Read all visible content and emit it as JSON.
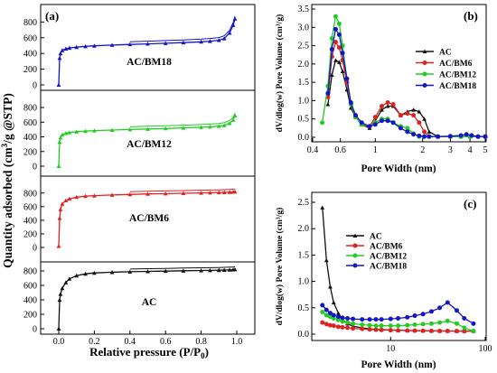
{
  "figure": {
    "left_ylabel_parts": [
      "Quantity adsorbed (cm",
      "3",
      "/g @STP)"
    ],
    "left_xlabel_parts": [
      "Relative pressure (P/P",
      "0",
      ")"
    ]
  },
  "chart_data": [
    {
      "panel": "(a)",
      "type": "line",
      "subplots": [
        {
          "label": "AC/BM18",
          "color": "#1515c8",
          "ylim": [
            0,
            850
          ],
          "yticks": [
            0,
            200,
            400,
            600,
            800
          ],
          "x": [
            0.0,
            0.005,
            0.01,
            0.02,
            0.04,
            0.06,
            0.1,
            0.15,
            0.2,
            0.3,
            0.4,
            0.5,
            0.6,
            0.7,
            0.8,
            0.85,
            0.9,
            0.93,
            0.96,
            0.98,
            0.99
          ],
          "values": [
            0,
            340,
            400,
            440,
            460,
            470,
            480,
            490,
            497,
            507,
            515,
            522,
            530,
            538,
            548,
            556,
            568,
            590,
            660,
            760,
            840
          ]
        },
        {
          "label": "AC/BM12",
          "color": "#22cc22",
          "ylim": [
            0,
            850
          ],
          "yticks": [
            0,
            200,
            400,
            600,
            800
          ],
          "x": [
            0.0,
            0.005,
            0.01,
            0.02,
            0.04,
            0.06,
            0.1,
            0.15,
            0.2,
            0.3,
            0.4,
            0.5,
            0.6,
            0.7,
            0.8,
            0.85,
            0.9,
            0.93,
            0.96,
            0.98,
            0.99
          ],
          "values": [
            0,
            330,
            390,
            430,
            450,
            460,
            470,
            478,
            485,
            493,
            500,
            507,
            514,
            522,
            531,
            537,
            546,
            557,
            585,
            630,
            690
          ]
        },
        {
          "label": "AC/BM6",
          "color": "#dd2222",
          "ylim": [
            0,
            850
          ],
          "yticks": [
            0,
            200,
            400,
            600,
            800
          ],
          "x": [
            0.0,
            0.005,
            0.01,
            0.02,
            0.04,
            0.06,
            0.1,
            0.15,
            0.2,
            0.3,
            0.4,
            0.5,
            0.6,
            0.7,
            0.8,
            0.85,
            0.9,
            0.93,
            0.96,
            0.98,
            0.99
          ],
          "values": [
            20,
            430,
            560,
            640,
            690,
            715,
            740,
            755,
            762,
            772,
            780,
            787,
            792,
            797,
            802,
            805,
            808,
            810,
            813,
            817,
            820
          ]
        },
        {
          "label": "AC",
          "color": "#111111",
          "ylim": [
            0,
            850
          ],
          "yticks": [
            0,
            200,
            400,
            600,
            800
          ],
          "x": [
            0.0,
            0.005,
            0.01,
            0.02,
            0.04,
            0.06,
            0.1,
            0.15,
            0.2,
            0.3,
            0.4,
            0.5,
            0.6,
            0.7,
            0.8,
            0.85,
            0.9,
            0.93,
            0.96,
            0.98,
            0.99
          ],
          "values": [
            0,
            400,
            480,
            560,
            640,
            690,
            735,
            760,
            772,
            782,
            789,
            794,
            798,
            802,
            806,
            808,
            810,
            812,
            815,
            818,
            820
          ]
        }
      ],
      "xticks": [
        "0.0",
        "0.2",
        "0.4",
        "0.6",
        "0.8",
        "1.0"
      ],
      "xlim": [
        0,
        1
      ]
    },
    {
      "panel": "(b)",
      "type": "line",
      "xscale": "log",
      "xlabel": "Pore Width (nm)",
      "ylabel": "dV/dlog(w) Pore Volume (cm³/g)",
      "xlim": [
        0.4,
        5
      ],
      "ylim": [
        0,
        3.5
      ],
      "xticks": [
        0.4,
        0.6,
        1,
        2,
        3,
        4,
        5
      ],
      "xtick_labels": [
        "0.4",
        "0.6",
        "1",
        "2",
        "3",
        "4",
        "5"
      ],
      "yticks": [
        0,
        0.5,
        1.0,
        1.5,
        2.0,
        2.5,
        3.0,
        3.5
      ],
      "ytick_labels": [
        "0.0",
        "0.5",
        "1.0",
        "1.5",
        "2.0",
        "2.5",
        "3.0",
        "3.5"
      ],
      "legend": "upper right",
      "series": [
        {
          "name": "AC",
          "color": "#111111",
          "x": [
            0.5,
            0.53,
            0.56,
            0.59,
            0.62,
            0.66,
            0.7,
            0.75,
            0.82,
            0.92,
            1.0,
            1.1,
            1.2,
            1.3,
            1.45,
            1.6,
            1.75,
            1.9,
            2.05,
            2.2,
            2.5,
            3.0,
            3.5,
            4.0,
            4.5,
            5.0
          ],
          "values": [
            0.9,
            1.7,
            2.1,
            2.05,
            1.8,
            1.3,
            0.8,
            0.55,
            0.35,
            0.25,
            0.45,
            0.75,
            0.85,
            0.85,
            0.6,
            0.7,
            0.75,
            0.7,
            0.5,
            0.15,
            0.02,
            0.02,
            0.02,
            0.02,
            0.02,
            0.02
          ]
        },
        {
          "name": "AC/BM6",
          "color": "#dd2222",
          "x": [
            0.5,
            0.53,
            0.56,
            0.59,
            0.62,
            0.66,
            0.7,
            0.75,
            0.82,
            0.92,
            1.0,
            1.1,
            1.2,
            1.3,
            1.45,
            1.6,
            1.75,
            1.9,
            2.05,
            2.2,
            2.5,
            3.0,
            3.5,
            4.0,
            4.5,
            5.0
          ],
          "values": [
            1.1,
            2.2,
            2.6,
            2.45,
            2.1,
            1.5,
            0.9,
            0.55,
            0.35,
            0.3,
            0.55,
            0.85,
            0.95,
            0.9,
            0.6,
            0.65,
            0.6,
            0.4,
            0.15,
            0.02,
            0.02,
            0.02,
            0.02,
            0.02,
            0.02,
            0.02
          ]
        },
        {
          "name": "AC/BM12",
          "color": "#22cc22",
          "x": [
            0.46,
            0.5,
            0.53,
            0.56,
            0.59,
            0.62,
            0.66,
            0.7,
            0.75,
            0.82,
            0.92,
            1.0,
            1.1,
            1.2,
            1.3,
            1.45,
            1.6,
            1.75,
            1.9,
            2.05,
            2.2,
            2.5,
            3.0,
            3.5,
            4.0,
            4.5,
            5.0
          ],
          "values": [
            0.4,
            1.4,
            2.7,
            3.3,
            3.1,
            2.5,
            1.6,
            0.9,
            0.55,
            0.35,
            0.3,
            0.4,
            0.5,
            0.5,
            0.4,
            0.3,
            0.25,
            0.1,
            0.02,
            0.02,
            0.02,
            0.02,
            0.02,
            0.02,
            0.02,
            0.02,
            0.02
          ]
        },
        {
          "name": "AC/BM18",
          "color": "#1515c8",
          "x": [
            0.5,
            0.53,
            0.56,
            0.59,
            0.62,
            0.66,
            0.7,
            0.75,
            0.82,
            0.92,
            1.0,
            1.1,
            1.2,
            1.3,
            1.45,
            1.6,
            1.75,
            1.9,
            2.05,
            2.2,
            2.5,
            3.0,
            3.5,
            3.8,
            4.1,
            4.5,
            5.0
          ],
          "values": [
            1.2,
            2.4,
            2.95,
            2.8,
            2.3,
            1.6,
            0.95,
            0.6,
            0.4,
            0.3,
            0.35,
            0.45,
            0.45,
            0.4,
            0.25,
            0.15,
            0.08,
            0.04,
            0.02,
            0.02,
            0.02,
            0.03,
            0.05,
            0.08,
            0.05,
            0.02,
            0.02
          ]
        }
      ]
    },
    {
      "panel": "(c)",
      "type": "line",
      "xscale": "log",
      "xlabel": "Pore Width (nm)",
      "ylabel": "dV/dlog(w) Pore Volume (cm³/g)",
      "xlim": [
        1.5,
        100
      ],
      "ylim": [
        0,
        2.5
      ],
      "xticks": [
        10,
        100
      ],
      "xtick_labels": [
        "10",
        "100"
      ],
      "yticks": [
        0,
        0.5,
        1.0,
        1.5,
        2.0,
        2.5
      ],
      "ytick_labels": [
        "0.0",
        "0.5",
        "1.0",
        "1.5",
        "2.0",
        "2.5"
      ],
      "legend": "upper left",
      "series": [
        {
          "name": "AC",
          "color": "#111111",
          "x": [
            1.9,
            2.1,
            2.3,
            2.5,
            2.8,
            3.1,
            3.5,
            4,
            5,
            6,
            7,
            8,
            10,
            12,
            15,
            18,
            22,
            27,
            33,
            40,
            50,
            60,
            75
          ],
          "values": [
            2.4,
            1.4,
            0.9,
            0.6,
            0.4,
            0.28,
            0.2,
            0.15,
            0.12,
            0.1,
            0.09,
            0.085,
            0.08,
            0.075,
            0.07,
            0.068,
            0.066,
            0.064,
            0.062,
            0.06,
            0.06,
            0.06,
            0.06
          ]
        },
        {
          "name": "AC/BM6",
          "color": "#dd2222",
          "x": [
            1.9,
            2.1,
            2.3,
            2.5,
            2.8,
            3.1,
            3.5,
            4,
            5,
            6,
            7,
            8,
            10,
            12,
            15,
            18,
            22,
            27,
            33,
            40,
            50,
            60,
            75
          ],
          "values": [
            0.22,
            0.19,
            0.17,
            0.16,
            0.14,
            0.13,
            0.12,
            0.11,
            0.1,
            0.09,
            0.085,
            0.08,
            0.075,
            0.07,
            0.068,
            0.066,
            0.064,
            0.062,
            0.06,
            0.06,
            0.058,
            0.057,
            0.056
          ]
        },
        {
          "name": "AC/BM12",
          "color": "#22cc22",
          "x": [
            1.9,
            2.1,
            2.3,
            2.5,
            2.8,
            3.1,
            3.5,
            4,
            5,
            6,
            7,
            8,
            10,
            12,
            15,
            18,
            22,
            27,
            33,
            40,
            50,
            60,
            75
          ],
          "values": [
            0.42,
            0.36,
            0.33,
            0.3,
            0.27,
            0.24,
            0.22,
            0.2,
            0.18,
            0.17,
            0.16,
            0.16,
            0.16,
            0.16,
            0.17,
            0.18,
            0.19,
            0.2,
            0.22,
            0.25,
            0.2,
            0.12,
            0.06
          ]
        },
        {
          "name": "AC/BM18",
          "color": "#1515c8",
          "x": [
            1.9,
            2.1,
            2.3,
            2.5,
            2.8,
            3.1,
            3.5,
            4,
            5,
            6,
            7,
            8,
            10,
            12,
            15,
            18,
            22,
            27,
            33,
            40,
            50,
            60,
            75
          ],
          "values": [
            0.55,
            0.46,
            0.4,
            0.36,
            0.33,
            0.31,
            0.3,
            0.29,
            0.28,
            0.28,
            0.28,
            0.28,
            0.29,
            0.3,
            0.32,
            0.35,
            0.38,
            0.43,
            0.5,
            0.6,
            0.45,
            0.3,
            0.2
          ]
        }
      ]
    }
  ]
}
